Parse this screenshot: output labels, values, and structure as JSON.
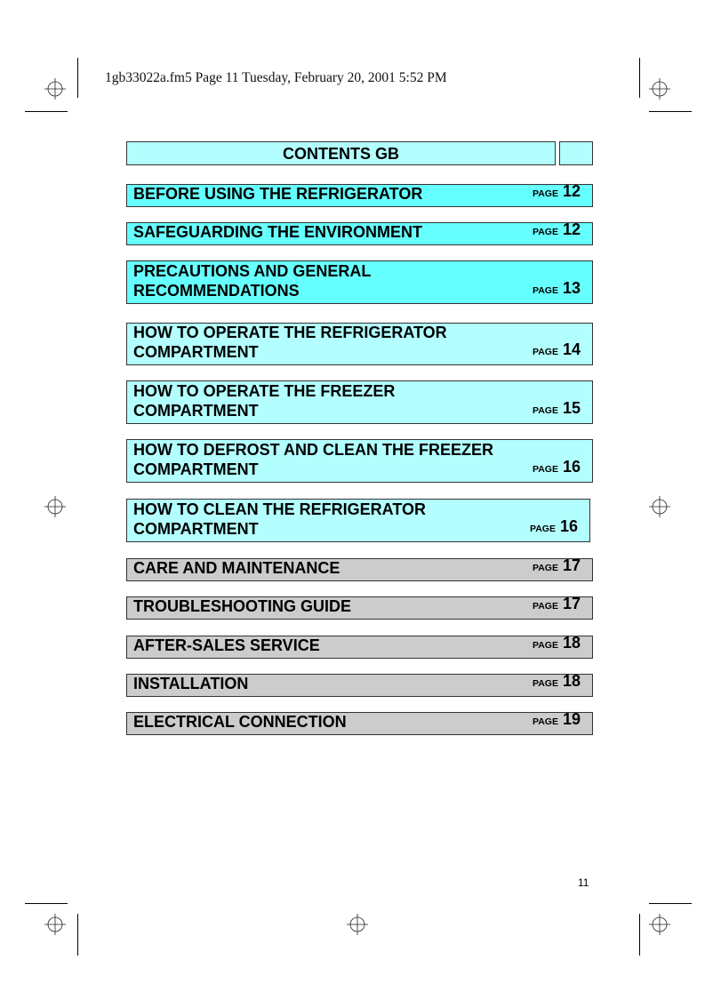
{
  "header_line": "1gb33022a.fm5  Page 11  Tuesday, February 20, 2001  5:52 PM",
  "contents_title": "CONTENTS GB",
  "page_word": "PAGE",
  "page_number": "11",
  "colors": {
    "primary": "#66ffff",
    "secondary": "#b3ffff",
    "other": "#cccccc"
  },
  "entries": [
    {
      "lines": [
        "BEFORE USING THE REFRIGERATOR"
      ],
      "page": "12"
    },
    {
      "lines": [
        "SAFEGUARDING THE ENVIRONMENT"
      ],
      "page": "12"
    },
    {
      "lines": [
        "PRECAUTIONS AND GENERAL",
        "RECOMMENDATIONS"
      ],
      "page": "13"
    },
    {
      "lines": [
        "HOW TO OPERATE THE REFRIGERATOR",
        "COMPARTMENT"
      ],
      "page": "14"
    },
    {
      "lines": [
        "HOW TO OPERATE THE FREEZER",
        "COMPARTMENT"
      ],
      "page": "15"
    },
    {
      "lines": [
        "HOW TO DEFROST AND CLEAN THE FREEZER",
        "COMPARTMENT"
      ],
      "page": "16"
    },
    {
      "lines": [
        "HOW TO CLEAN THE REFRIGERATOR",
        "COMPARTMENT"
      ],
      "page": "16"
    },
    {
      "lines": [
        "CARE AND MAINTENANCE"
      ],
      "page": "17"
    },
    {
      "lines": [
        "TROUBLESHOOTING GUIDE"
      ],
      "page": "17"
    },
    {
      "lines": [
        "AFTER-SALES SERVICE"
      ],
      "page": "18"
    },
    {
      "lines": [
        "INSTALLATION"
      ],
      "page": "18"
    },
    {
      "lines": [
        "ELECTRICAL CONNECTION"
      ],
      "page": "19"
    }
  ]
}
